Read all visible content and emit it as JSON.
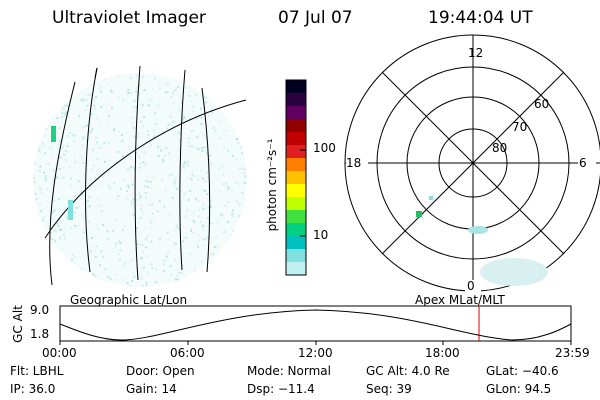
{
  "header": {
    "title": "Ultraviolet Imager",
    "date": "07 Jul 07",
    "time": "19:44:04 UT"
  },
  "colorbar": {
    "label": "photon cm⁻²s⁻¹",
    "ticks": [
      "100",
      "10"
    ],
    "colors": [
      "#000020",
      "#2a0040",
      "#600060",
      "#900000",
      "#c00000",
      "#e02020",
      "#ff8000",
      "#ffc000",
      "#ffff00",
      "#c0ff00",
      "#40e040",
      "#00d080",
      "#00c0c0",
      "#80e0e0",
      "#c0f0f0"
    ]
  },
  "polar_plot": {
    "mlt_labels": [
      "12",
      "18",
      "6",
      "0"
    ],
    "mlat_labels": [
      "60",
      "70",
      "80"
    ]
  },
  "orbit_plot": {
    "left_label": "Geographic Lat/Lon",
    "right_label": "Apex MLat/MLT",
    "yaxis_label": "GC Alt",
    "y_ticks": [
      "9.0",
      "1.8"
    ],
    "x_ticks": [
      "00:00",
      "06:00",
      "12:00",
      "18:00",
      "23:59"
    ],
    "current_time_fraction": 0.82,
    "marker_color": "#e00000"
  },
  "info": {
    "flt": "Flt: LBHL",
    "ip": "IP: 36.0",
    "door": "Door: Open",
    "gain": "Gain: 14",
    "mode": "Mode: Normal",
    "dsp": "Dsp:  −11.4",
    "gcalt": "GC Alt: 4.0 Re",
    "seq": "Seq: 39",
    "glat": "GLat:  −40.6",
    "glon": "GLon:  94.5"
  }
}
